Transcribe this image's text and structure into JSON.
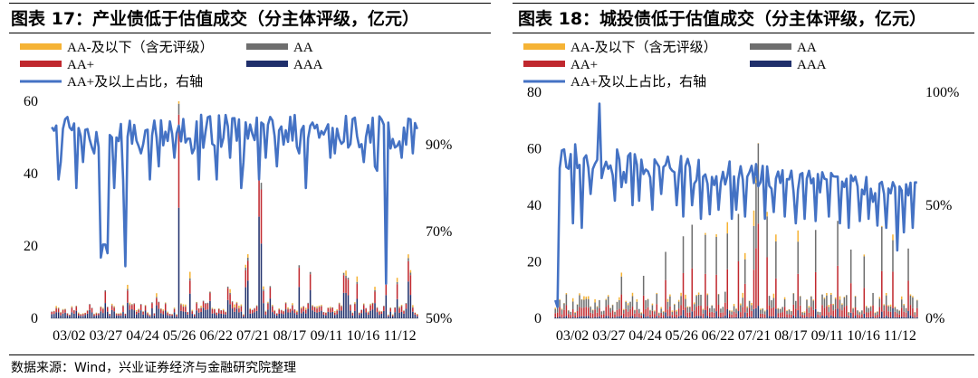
{
  "colors": {
    "aa_below": "#F5B335",
    "aa_plus": "#C0282E",
    "aa": "#6E6E6E",
    "aaa": "#1F2F6B",
    "aa_plus_ratio": "#4472C4"
  },
  "source_note": "数据来源：Wind，兴业证券经济与金融研究院整理",
  "chart_data": [
    {
      "type": "bar",
      "title": "图表 17：产业债低于估值成交（分主体评级，亿元）",
      "legend": [
        "AA-及以下（含无评级）",
        "AA",
        "AA+",
        "AAA",
        "AA+及以上占比，右轴"
      ],
      "x_ticks": [
        "03/02",
        "03/27",
        "04/24",
        "05/26",
        "06/22",
        "07/21",
        "08/17",
        "09/11",
        "10/16",
        "11/12"
      ],
      "y_left_ticks": [
        "0",
        "20",
        "40",
        "60"
      ],
      "y_left_range": [
        0,
        60
      ],
      "y_right_ticks": [
        "50%",
        "70%",
        "90%"
      ],
      "y_right_range": [
        50,
        100
      ],
      "n_points": 165,
      "bar_level": 4,
      "bar_spikes": [
        [
          24,
          8
        ],
        [
          34,
          9
        ],
        [
          47,
          7
        ],
        [
          57,
          10
        ],
        [
          62,
          12
        ],
        [
          71,
          9
        ],
        [
          79,
          7
        ],
        [
          80,
          9
        ],
        [
          87,
          13
        ],
        [
          88,
          17
        ],
        [
          95,
          10
        ],
        [
          98,
          9
        ],
        [
          111,
          12
        ],
        [
          116,
          11
        ],
        [
          131,
          14
        ],
        [
          132,
          15
        ],
        [
          133,
          12
        ],
        [
          137,
          10
        ],
        [
          145,
          9
        ],
        [
          150,
          12
        ],
        [
          155,
          10
        ],
        [
          160,
          16
        ],
        [
          161,
          13
        ]
      ],
      "mega_spikes": [
        [
          57,
          60
        ],
        [
          93,
          44
        ],
        [
          94,
          37
        ]
      ],
      "ratio_base": 93,
      "ratio_noise": 4,
      "ratio_dips": [
        [
          3,
          82
        ],
        [
          4,
          86
        ],
        [
          11,
          80
        ],
        [
          14,
          86
        ],
        [
          19,
          88
        ],
        [
          22,
          64
        ],
        [
          23,
          67
        ],
        [
          24,
          67
        ],
        [
          25,
          65
        ],
        [
          28,
          80
        ],
        [
          32,
          82
        ],
        [
          33,
          62
        ],
        [
          40,
          88
        ],
        [
          44,
          82
        ],
        [
          48,
          85
        ],
        [
          55,
          87
        ],
        [
          63,
          88
        ],
        [
          66,
          82
        ],
        [
          74,
          82
        ],
        [
          80,
          87
        ],
        [
          85,
          80
        ],
        [
          86,
          86
        ],
        [
          93,
          82
        ],
        [
          96,
          87
        ],
        [
          101,
          85
        ],
        [
          104,
          90
        ],
        [
          111,
          88
        ],
        [
          114,
          80
        ],
        [
          125,
          87
        ],
        [
          127,
          88
        ],
        [
          140,
          86
        ],
        [
          145,
          85
        ],
        [
          146,
          84
        ],
        [
          150,
          58
        ],
        [
          157,
          87
        ],
        [
          159,
          90
        ],
        [
          162,
          88
        ]
      ]
    },
    {
      "type": "bar",
      "title": "图表 18：城投债低于估值成交（分主体评级，亿元）",
      "legend": [
        "AA-及以下（含无评级）",
        "AA",
        "AA+",
        "AAA",
        "AA+及以上占比，右轴"
      ],
      "x_ticks": [
        "03/02",
        "03/27",
        "04/24",
        "05/26",
        "06/22",
        "07/21",
        "08/17",
        "09/11",
        "10/16",
        "11/12"
      ],
      "y_left_ticks": [
        "0",
        "20",
        "40",
        "60",
        "80"
      ],
      "y_left_range": [
        0,
        80
      ],
      "y_right_ticks": [
        "0%",
        "50%",
        "100%"
      ],
      "y_right_range": [
        0,
        100
      ],
      "n_points": 165,
      "bar_level": 8,
      "bar_spikes": [
        [
          30,
          15
        ],
        [
          40,
          17
        ],
        [
          50,
          22
        ],
        [
          58,
          25
        ],
        [
          62,
          28
        ],
        [
          68,
          26
        ],
        [
          73,
          30
        ],
        [
          78,
          32
        ],
        [
          83,
          35
        ],
        [
          86,
          28
        ],
        [
          90,
          33
        ],
        [
          92,
          50
        ],
        [
          96,
          32
        ],
        [
          100,
          30
        ],
        [
          110,
          28
        ],
        [
          118,
          27
        ],
        [
          128,
          32
        ],
        [
          134,
          30
        ],
        [
          140,
          28
        ],
        [
          148,
          31
        ],
        [
          153,
          26
        ],
        [
          160,
          27
        ]
      ],
      "mega_spikes": [
        [
          92,
          62
        ],
        [
          91,
          50
        ]
      ],
      "ratio_base": 72,
      "ratio_noise": 6,
      "ratio_trend": -17,
      "ratio_dips": [
        [
          0,
          8
        ],
        [
          1,
          5
        ],
        [
          8,
          42
        ],
        [
          12,
          40
        ],
        [
          16,
          55
        ],
        [
          20,
          95
        ],
        [
          21,
          62
        ],
        [
          27,
          52
        ],
        [
          30,
          58
        ],
        [
          32,
          60
        ],
        [
          35,
          50
        ],
        [
          38,
          52
        ],
        [
          44,
          48
        ],
        [
          48,
          55
        ],
        [
          55,
          50
        ],
        [
          58,
          45
        ],
        [
          62,
          50
        ],
        [
          66,
          44
        ],
        [
          70,
          46
        ],
        [
          74,
          48
        ],
        [
          80,
          44
        ],
        [
          82,
          48
        ],
        [
          86,
          45
        ],
        [
          95,
          44
        ],
        [
          99,
          47
        ],
        [
          104,
          45
        ],
        [
          109,
          42
        ],
        [
          113,
          44
        ],
        [
          118,
          43
        ],
        [
          124,
          45
        ],
        [
          129,
          42
        ],
        [
          133,
          40
        ],
        [
          138,
          43
        ],
        [
          142,
          44
        ],
        [
          146,
          41
        ],
        [
          150,
          40
        ],
        [
          155,
          30
        ],
        [
          158,
          38
        ],
        [
          162,
          40
        ]
      ]
    }
  ]
}
